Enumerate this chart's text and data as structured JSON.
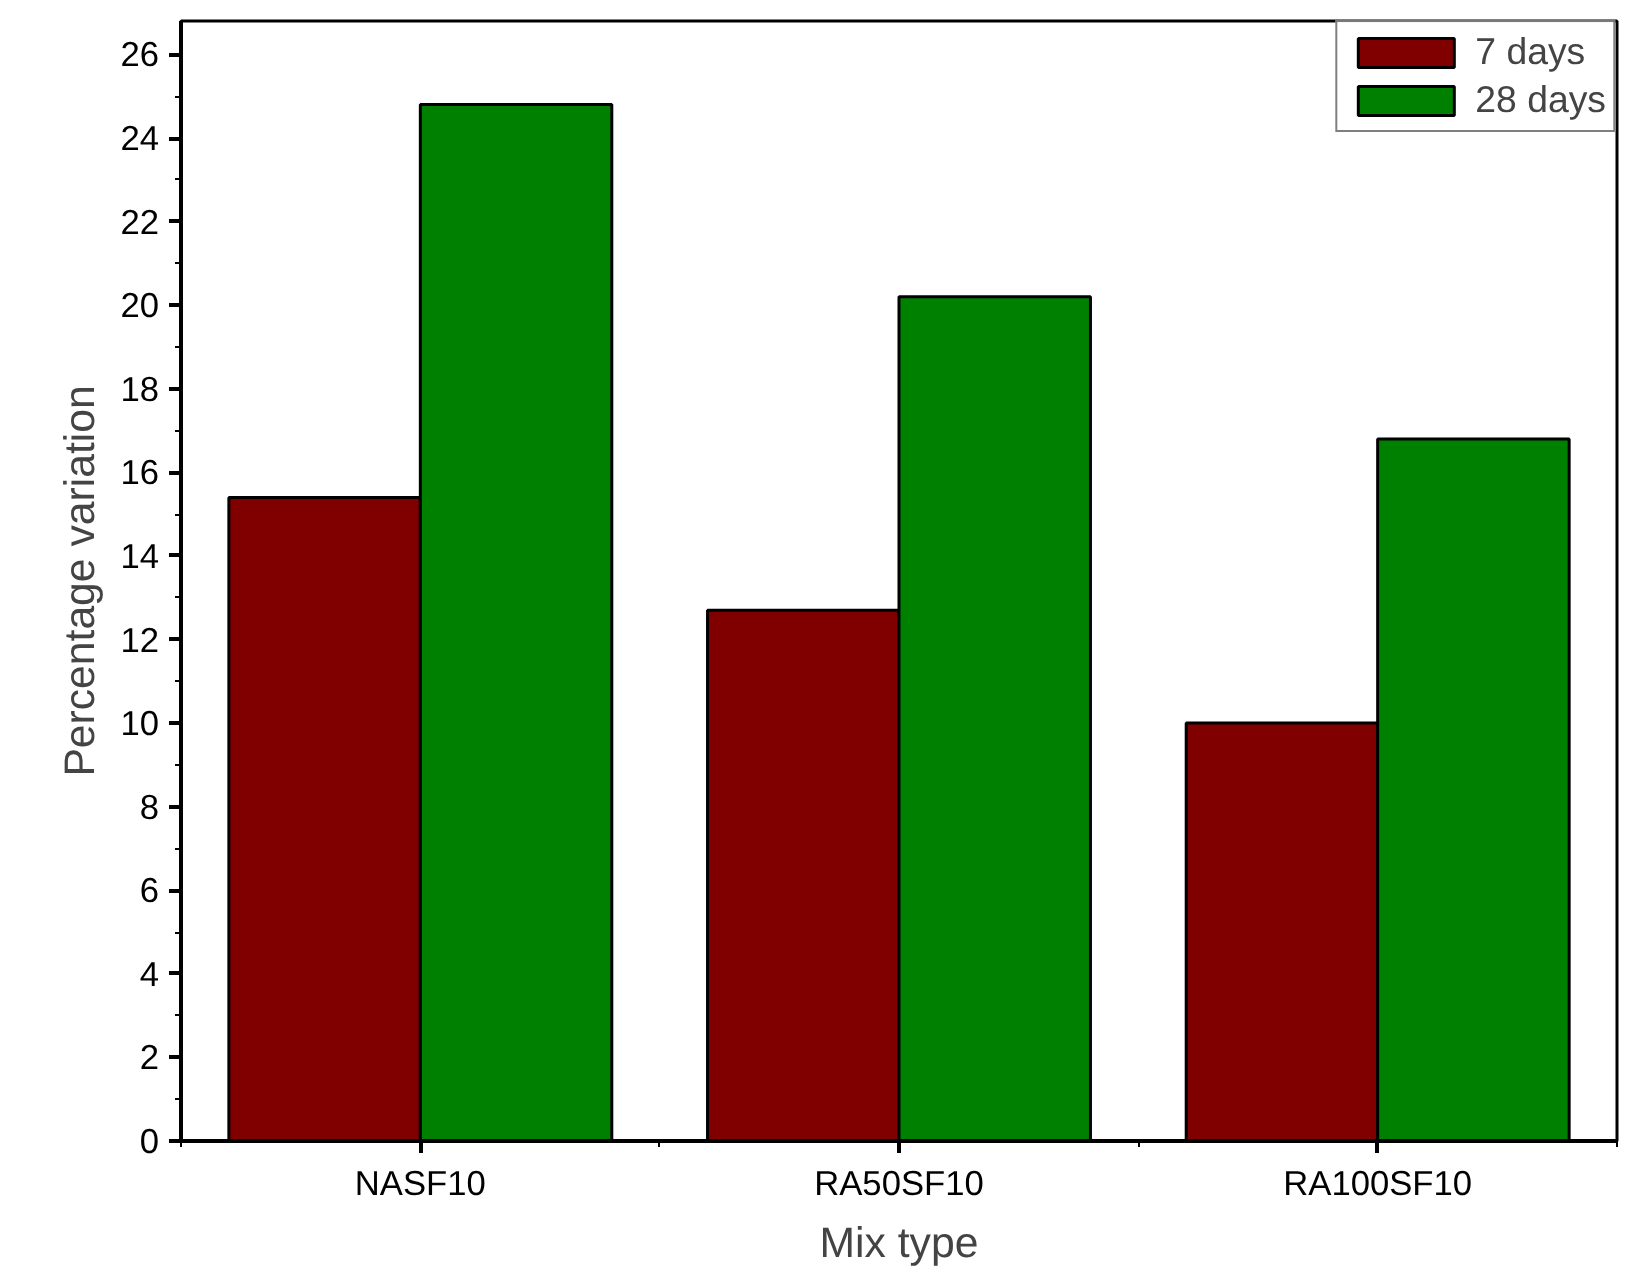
{
  "chart_data": {
    "type": "bar",
    "xlabel": "Mix type",
    "ylabel": "Percentage variation",
    "categories": [
      "NASF10",
      "RA50SF10",
      "RA100SF10"
    ],
    "series": [
      {
        "name": "7 days",
        "color": "#800000",
        "values": [
          15.4,
          12.7,
          10.0
        ]
      },
      {
        "name": "28 days",
        "color": "#008000",
        "values": [
          24.8,
          20.2,
          16.8
        ]
      }
    ],
    "ylim": [
      0,
      26.8
    ],
    "yticks": [
      0,
      2,
      4,
      6,
      8,
      10,
      12,
      14,
      16,
      18,
      20,
      22,
      24,
      26
    ],
    "grid": false,
    "legend": "top right"
  }
}
